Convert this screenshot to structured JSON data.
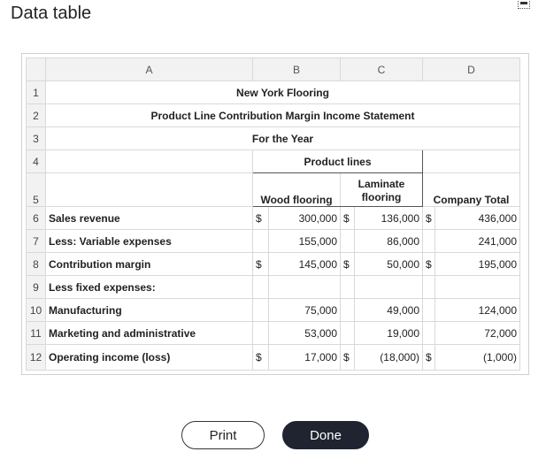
{
  "dialog": {
    "title": "Data table",
    "print_label": "Print",
    "done_label": "Done"
  },
  "columns": {
    "a": "A",
    "b": "B",
    "c": "C",
    "d": "D"
  },
  "header": {
    "company": "New York Flooring",
    "statement": "Product Line Contribution Margin Income Statement",
    "period": "For the Year",
    "group": "Product lines",
    "col_b": "Wood flooring",
    "col_c_line1": "Laminate",
    "col_c_line2": "flooring",
    "col_d": "Company Total"
  },
  "row_numbers": [
    "1",
    "2",
    "3",
    "4",
    "5",
    "6",
    "7",
    "8",
    "9",
    "10",
    "11",
    "12"
  ],
  "rows": {
    "sales": {
      "label": "Sales revenue",
      "cur_b": "$",
      "b": "300,000",
      "cur_c": "$",
      "c": "136,000",
      "cur_d": "$",
      "d": "436,000"
    },
    "variable": {
      "label": "Less: Variable expenses",
      "b": "155,000",
      "c": "86,000",
      "d": "241,000"
    },
    "contribution": {
      "label": "Contribution margin",
      "cur_b": "$",
      "b": "145,000",
      "cur_c": "$",
      "c": "50,000",
      "cur_d": "$",
      "d": "195,000"
    },
    "fixed_header": {
      "label": "Less fixed expenses:"
    },
    "manufacturing": {
      "label": "Manufacturing",
      "b": "75,000",
      "c": "49,000",
      "d": "124,000"
    },
    "marketing": {
      "label": "Marketing and administrative",
      "b": "53,000",
      "c": "19,000",
      "d": "72,000"
    },
    "operating": {
      "label": "Operating income (loss)",
      "cur_b": "$",
      "b": "17,000",
      "cur_c": "$",
      "c": "(18,000)",
      "cur_d": "$",
      "d": "(1,000)"
    }
  }
}
